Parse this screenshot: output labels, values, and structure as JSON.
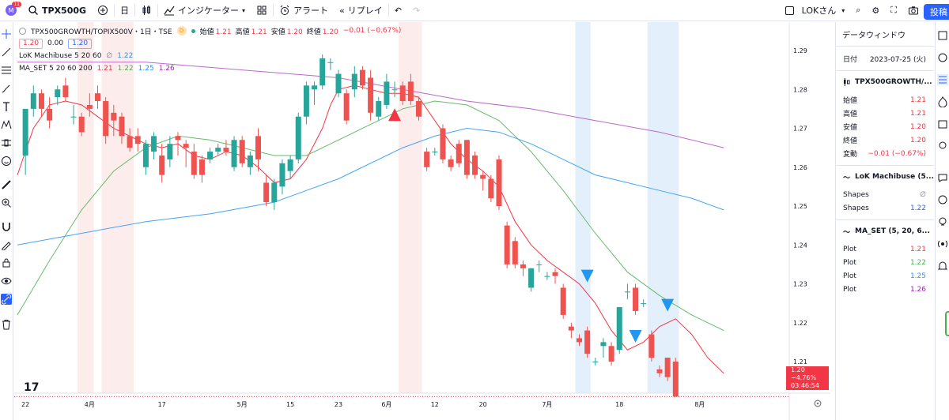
{
  "topbar": {
    "avatar_letter": "M",
    "avatar_badge": "11",
    "symbol": "TPX500G",
    "interval": "日",
    "indicators_label": "インジケーター",
    "alert_label": "アラート",
    "replay_label": "リプレイ",
    "user_label": "LOKさん",
    "post_label": "投稿"
  },
  "legend": {
    "title": "TPX500GROWTH/TOPIX500V・1日・TSE",
    "d_badge": "D",
    "ohlc": [
      {
        "label": "始値",
        "value": "1.21"
      },
      {
        "label": "高値",
        "value": "1.21"
      },
      {
        "label": "安値",
        "value": "1.20"
      },
      {
        "label": "終値",
        "value": "1.20"
      }
    ],
    "change": "−0.01 (−0.67%)",
    "price_boxes": [
      "1.20",
      "0.00",
      "1.20"
    ],
    "ind1_name": "LoK Machibuse 5 20 60",
    "ind1_value": "1.22",
    "ind2_name": "MA_SET 5 20 60 200",
    "ind2_values": [
      "1.21",
      "1.22",
      "1.25",
      "1.26"
    ]
  },
  "data_window": {
    "title": "データウィンドウ",
    "date_label": "日付",
    "date_value": "2023-07-25 (火)",
    "symbol_name": "TPX500GROWTH/...",
    "rows": [
      {
        "label": "始値",
        "value": "1.21"
      },
      {
        "label": "高値",
        "value": "1.21"
      },
      {
        "label": "安値",
        "value": "1.20"
      },
      {
        "label": "終値",
        "value": "1.20"
      },
      {
        "label": "変動",
        "value": "−0.01 (−0.67%)"
      }
    ],
    "ind1_title": "LoK Machibuse (5...",
    "ind1_rows": [
      {
        "label": "Shapes",
        "value": "∅"
      },
      {
        "label": "Shapes",
        "value": "1.22"
      }
    ],
    "ind2_title": "MA_SET (5, 20, 6...",
    "ind2_rows": [
      {
        "label": "Plot",
        "value": "1.21",
        "color": "#f23645"
      },
      {
        "label": "Plot",
        "value": "1.22",
        "color": "#4caf50"
      },
      {
        "label": "Plot",
        "value": "1.25",
        "color": "#2196f3"
      },
      {
        "label": "Plot",
        "value": "1.26",
        "color": "#9c27b0"
      }
    ]
  },
  "last_price": {
    "price": "1.20",
    "pct": "−4.76%",
    "countdown": "03:46:54"
  },
  "chart_data": {
    "type": "candlestick",
    "y_ticks": [
      1.29,
      1.28,
      1.27,
      1.26,
      1.25,
      1.24,
      1.23,
      1.22,
      1.21
    ],
    "ylim": [
      1.197,
      1.2925
    ],
    "x_labels": [
      {
        "label": "22",
        "bar": 1
      },
      {
        "label": "4月",
        "bar": 9
      },
      {
        "label": "17",
        "bar": 18
      },
      {
        "label": "5月",
        "bar": 28
      },
      {
        "label": "15",
        "bar": 34
      },
      {
        "label": "23",
        "bar": 40
      },
      {
        "label": "6月",
        "bar": 46
      },
      {
        "label": "12",
        "bar": 52
      },
      {
        "label": "20",
        "bar": 58
      },
      {
        "label": "7月",
        "bar": 66
      },
      {
        "label": "18",
        "bar": 75
      },
      {
        "label": "8月",
        "bar": 85
      }
    ],
    "candles": [
      [
        1.263,
        1.275,
        1.258,
        1.275
      ],
      [
        1.275,
        1.281,
        1.273,
        1.279
      ],
      [
        1.279,
        1.28,
        1.273,
        1.275
      ],
      [
        1.275,
        1.278,
        1.27,
        1.272
      ],
      [
        1.278,
        1.281,
        1.276,
        1.28
      ],
      [
        1.281,
        1.283,
        1.277,
        1.278
      ],
      [
        1.273,
        1.276,
        1.271,
        1.273
      ],
      [
        1.273,
        1.274,
        1.268,
        1.269
      ],
      [
        1.276,
        1.279,
        1.273,
        1.275
      ],
      [
        1.279,
        1.281,
        1.275,
        1.277
      ],
      [
        1.277,
        1.278,
        1.266,
        1.268
      ],
      [
        1.274,
        1.276,
        1.268,
        1.272
      ],
      [
        1.273,
        1.274,
        1.266,
        1.268
      ],
      [
        1.268,
        1.27,
        1.264,
        1.265
      ],
      [
        1.268,
        1.27,
        1.264,
        1.266
      ],
      [
        1.26,
        1.267,
        1.258,
        1.266
      ],
      [
        1.264,
        1.269,
        1.262,
        1.268
      ],
      [
        1.263,
        1.266,
        1.256,
        1.258
      ],
      [
        1.262,
        1.268,
        1.26,
        1.266
      ],
      [
        1.268,
        1.269,
        1.263,
        1.267
      ],
      [
        1.266,
        1.267,
        1.26,
        1.265
      ],
      [
        1.264,
        1.266,
        1.257,
        1.258
      ],
      [
        1.262,
        1.263,
        1.256,
        1.258
      ],
      [
        1.262,
        1.265,
        1.261,
        1.264
      ],
      [
        1.264,
        1.266,
        1.263,
        1.265
      ],
      [
        1.265,
        1.267,
        1.263,
        1.264
      ],
      [
        1.26,
        1.268,
        1.259,
        1.267
      ],
      [
        1.267,
        1.268,
        1.26,
        1.261
      ],
      [
        1.26,
        1.264,
        1.258,
        1.263
      ],
      [
        1.268,
        1.27,
        1.259,
        1.262
      ],
      [
        1.256,
        1.258,
        1.25,
        1.251
      ],
      [
        1.251,
        1.257,
        1.249,
        1.256
      ],
      [
        1.255,
        1.262,
        1.253,
        1.261
      ],
      [
        1.259,
        1.263,
        1.257,
        1.262
      ],
      [
        1.262,
        1.274,
        1.261,
        1.273
      ],
      [
        1.273,
        1.282,
        1.271,
        1.281
      ],
      [
        1.28,
        1.282,
        1.276,
        1.281
      ],
      [
        1.281,
        1.289,
        1.28,
        1.288
      ],
      [
        1.287,
        1.288,
        1.285,
        1.287
      ],
      [
        1.279,
        1.285,
        1.278,
        1.284
      ],
      [
        1.279,
        1.28,
        1.271,
        1.272
      ],
      [
        1.28,
        1.286,
        1.278,
        1.284
      ],
      [
        1.285,
        1.286,
        1.28,
        1.281
      ],
      [
        1.283,
        1.285,
        1.272,
        1.274
      ],
      [
        1.273,
        1.278,
        1.272,
        1.277
      ],
      [
        1.276,
        1.284,
        1.275,
        1.282
      ],
      [
        1.28,
        1.282,
        1.278,
        1.28
      ],
      [
        1.281,
        1.282,
        1.276,
        1.277
      ],
      [
        1.282,
        1.284,
        1.276,
        1.277
      ],
      [
        1.277,
        1.278,
        1.272,
        1.273
      ],
      [
        1.264,
        1.265,
        1.259,
        1.26
      ],
      [
        1.264,
        1.265,
        1.263,
        1.264
      ],
      [
        1.27,
        1.271,
        1.261,
        1.262
      ],
      [
        1.262,
        1.263,
        1.259,
        1.26
      ],
      [
        1.266,
        1.267,
        1.26,
        1.261
      ],
      [
        1.267,
        1.267,
        1.257,
        1.258
      ],
      [
        1.263,
        1.264,
        1.257,
        1.258
      ],
      [
        1.258,
        1.259,
        1.254,
        1.257
      ],
      [
        1.257,
        1.258,
        1.251,
        1.252
      ],
      [
        1.262,
        1.263,
        1.249,
        1.25
      ],
      [
        1.245,
        1.246,
        1.234,
        1.235
      ],
      [
        1.241,
        1.242,
        1.234,
        1.235
      ],
      [
        1.235,
        1.236,
        1.232,
        1.234
      ],
      [
        1.229,
        1.234,
        1.228,
        1.234
      ],
      [
        1.235,
        1.236,
        1.233,
        1.235
      ],
      [
        1.232,
        1.233,
        1.231,
        1.232
      ],
      [
        1.233,
        1.234,
        1.23,
        1.232
      ],
      [
        1.229,
        1.23,
        1.221,
        1.222
      ],
      [
        1.219,
        1.22,
        1.216,
        1.218
      ],
      [
        1.216,
        1.217,
        1.214,
        1.215
      ],
      [
        1.218,
        1.219,
        1.211,
        1.212
      ],
      [
        1.21,
        1.211,
        1.209,
        1.21
      ],
      [
        1.214,
        1.216,
        1.211,
        1.215
      ],
      [
        1.214,
        1.215,
        1.209,
        1.21
      ],
      [
        1.213,
        1.224,
        1.212,
        1.224
      ],
      [
        1.228,
        1.23,
        1.226,
        1.228
      ],
      [
        1.229,
        1.23,
        1.222,
        1.223
      ],
      [
        1.225,
        1.226,
        1.224,
        1.225
      ],
      [
        1.217,
        1.218,
        1.21,
        1.211
      ],
      [
        1.208,
        1.209,
        1.206,
        1.207
      ],
      [
        1.211,
        1.211,
        1.205,
        1.206
      ],
      [
        1.21,
        1.211,
        1.201,
        1.201
      ]
    ],
    "first_candle_bar": 1,
    "ma": [
      {
        "name": "MA 5",
        "color": "#f23645",
        "points": [
          [
            0,
            1.258
          ],
          [
            2,
            1.27
          ],
          [
            4,
            1.276
          ],
          [
            6,
            1.277
          ],
          [
            8,
            1.276
          ],
          [
            10,
            1.273
          ],
          [
            12,
            1.27
          ],
          [
            14,
            1.268
          ],
          [
            16,
            1.266
          ],
          [
            18,
            1.265
          ],
          [
            20,
            1.266
          ],
          [
            22,
            1.263
          ],
          [
            24,
            1.262
          ],
          [
            26,
            1.264
          ],
          [
            28,
            1.263
          ],
          [
            30,
            1.26
          ],
          [
            32,
            1.256
          ],
          [
            34,
            1.257
          ],
          [
            36,
            1.262
          ],
          [
            38,
            1.27
          ],
          [
            39,
            1.276
          ],
          [
            40,
            1.28
          ],
          [
            42,
            1.281
          ],
          [
            44,
            1.28
          ],
          [
            46,
            1.279
          ],
          [
            48,
            1.279
          ],
          [
            50,
            1.278
          ],
          [
            52,
            1.272
          ],
          [
            54,
            1.266
          ],
          [
            56,
            1.262
          ],
          [
            58,
            1.259
          ],
          [
            60,
            1.255
          ],
          [
            62,
            1.246
          ],
          [
            64,
            1.24
          ],
          [
            66,
            1.236
          ],
          [
            68,
            1.233
          ],
          [
            70,
            1.23
          ],
          [
            72,
            1.225
          ],
          [
            74,
            1.218
          ],
          [
            76,
            1.213
          ],
          [
            78,
            1.215
          ],
          [
            80,
            1.219
          ],
          [
            82,
            1.221
          ],
          [
            84,
            1.217
          ],
          [
            86,
            1.211
          ],
          [
            88,
            1.207
          ]
        ]
      },
      {
        "name": "MA 20",
        "color": "#66bb6a",
        "points": [
          [
            0,
            1.222
          ],
          [
            4,
            1.236
          ],
          [
            8,
            1.249
          ],
          [
            12,
            1.259
          ],
          [
            16,
            1.265
          ],
          [
            20,
            1.268
          ],
          [
            24,
            1.267
          ],
          [
            28,
            1.265
          ],
          [
            32,
            1.263
          ],
          [
            36,
            1.263
          ],
          [
            40,
            1.267
          ],
          [
            44,
            1.271
          ],
          [
            48,
            1.275
          ],
          [
            52,
            1.277
          ],
          [
            56,
            1.276
          ],
          [
            60,
            1.272
          ],
          [
            64,
            1.264
          ],
          [
            68,
            1.254
          ],
          [
            72,
            1.243
          ],
          [
            76,
            1.233
          ],
          [
            80,
            1.227
          ],
          [
            84,
            1.222
          ],
          [
            88,
            1.218
          ]
        ]
      },
      {
        "name": "MA 60",
        "color": "#42a5f5",
        "points": [
          [
            0,
            1.24
          ],
          [
            8,
            1.243
          ],
          [
            16,
            1.246
          ],
          [
            24,
            1.248
          ],
          [
            32,
            1.251
          ],
          [
            40,
            1.257
          ],
          [
            48,
            1.265
          ],
          [
            52,
            1.268
          ],
          [
            56,
            1.27
          ],
          [
            60,
            1.269
          ],
          [
            64,
            1.266
          ],
          [
            68,
            1.262
          ],
          [
            72,
            1.258
          ],
          [
            76,
            1.256
          ],
          [
            80,
            1.254
          ],
          [
            84,
            1.252
          ],
          [
            88,
            1.249
          ]
        ]
      },
      {
        "name": "MA 200",
        "color": "#ba68c8",
        "points": [
          [
            0,
            1.287
          ],
          [
            16,
            1.287
          ],
          [
            28,
            1.285
          ],
          [
            40,
            1.283
          ],
          [
            48,
            1.28
          ],
          [
            56,
            1.277
          ],
          [
            64,
            1.275
          ],
          [
            72,
            1.272
          ],
          [
            80,
            1.269
          ],
          [
            88,
            1.265
          ]
        ]
      }
    ],
    "signals": [
      {
        "bar": 47,
        "price": 1.2735,
        "type": "up",
        "color": "#f23645"
      },
      {
        "bar": 71,
        "price": 1.232,
        "type": "down",
        "color": "#2196f3"
      },
      {
        "bar": 77,
        "price": 1.2165,
        "type": "down",
        "color": "#2196f3"
      },
      {
        "bar": 81,
        "price": 1.2245,
        "type": "down",
        "color": "#2196f3"
      }
    ],
    "bg_bands": [
      {
        "from": 8,
        "to": 9,
        "color": "#fdecec"
      },
      {
        "from": 11,
        "to": 14,
        "color": "#fdecec"
      },
      {
        "from": 48,
        "to": 49.9,
        "color": "#fdecec"
      },
      {
        "from": 70,
        "to": 70.9,
        "color": "#e3f0fb"
      },
      {
        "from": 79,
        "to": 81.9,
        "color": "#e3f0fb"
      }
    ]
  }
}
